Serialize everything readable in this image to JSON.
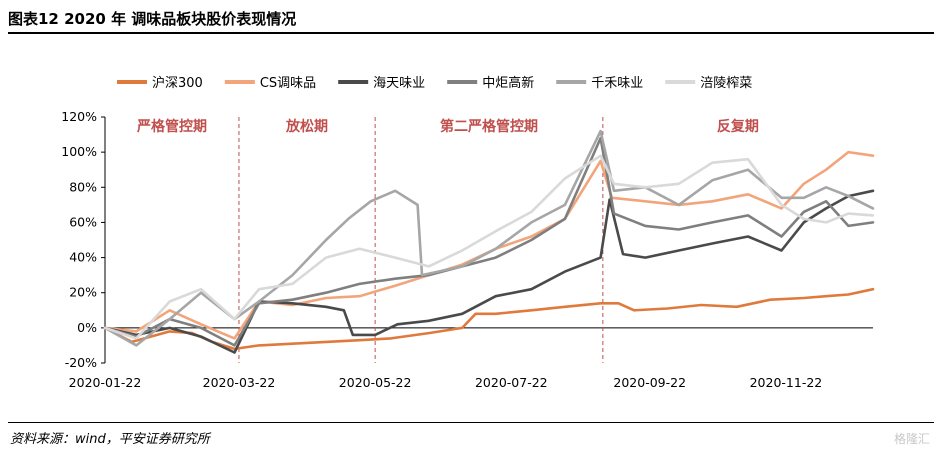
{
  "title": "图表12    2020 年 调味品板块股价表现情况",
  "source": "资料来源：wind，平安证券研究所",
  "watermark": "格隆汇",
  "chart_data": {
    "type": "line",
    "ylim": [
      -20,
      120
    ],
    "yticks": [
      -20,
      0,
      20,
      40,
      60,
      80,
      100,
      120
    ],
    "ytick_labels": [
      "-20%",
      "0%",
      "20%",
      "40%",
      "60%",
      "80%",
      "100%",
      "120%"
    ],
    "xlim": [
      "2020-01-22",
      "2020-12-31"
    ],
    "xticks": [
      "2020-01-22",
      "2020-03-22",
      "2020-05-22",
      "2020-07-22",
      "2020-09-22",
      "2020-11-22"
    ],
    "grid": false,
    "legend_position": "top",
    "phases": [
      {
        "label": "严格管控期",
        "start": "2020-01-22",
        "end": "2020-03-22"
      },
      {
        "label": "放松期",
        "start": "2020-03-22",
        "end": "2020-05-22"
      },
      {
        "label": "第二严格管控期",
        "start": "2020-05-22",
        "end": "2020-09-01"
      },
      {
        "label": "反复期",
        "start": "2020-09-01",
        "end": "2020-12-31"
      }
    ],
    "phase_dividers": [
      "2020-03-22",
      "2020-05-22",
      "2020-09-01"
    ],
    "series": [
      {
        "name": "沪深300",
        "color": "#e07a3c",
        "width": 2.6,
        "points": [
          [
            "2020-01-22",
            0
          ],
          [
            "2020-02-03",
            -8
          ],
          [
            "2020-02-20",
            -2
          ],
          [
            "2020-03-01",
            -3
          ],
          [
            "2020-03-10",
            -8
          ],
          [
            "2020-03-20",
            -12
          ],
          [
            "2020-03-31",
            -10
          ],
          [
            "2020-04-15",
            -9
          ],
          [
            "2020-04-30",
            -8
          ],
          [
            "2020-05-15",
            -7
          ],
          [
            "2020-05-29",
            -6
          ],
          [
            "2020-06-15",
            -3
          ],
          [
            "2020-06-30",
            0
          ],
          [
            "2020-07-06",
            8
          ],
          [
            "2020-07-15",
            8
          ],
          [
            "2020-07-31",
            10
          ],
          [
            "2020-08-15",
            12
          ],
          [
            "2020-08-31",
            14
          ],
          [
            "2020-09-08",
            14
          ],
          [
            "2020-09-15",
            10
          ],
          [
            "2020-09-30",
            11
          ],
          [
            "2020-10-15",
            13
          ],
          [
            "2020-10-31",
            12
          ],
          [
            "2020-11-15",
            16
          ],
          [
            "2020-11-30",
            17
          ],
          [
            "2020-12-10",
            18
          ],
          [
            "2020-12-20",
            19
          ],
          [
            "2020-12-31",
            22
          ]
        ]
      },
      {
        "name": "CS调味品",
        "color": "#f2a57a",
        "width": 2.6,
        "points": [
          [
            "2020-01-22",
            0
          ],
          [
            "2020-02-05",
            -2
          ],
          [
            "2020-02-20",
            10
          ],
          [
            "2020-03-05",
            2
          ],
          [
            "2020-03-20",
            -6
          ],
          [
            "2020-03-31",
            15
          ],
          [
            "2020-04-15",
            13
          ],
          [
            "2020-04-30",
            17
          ],
          [
            "2020-05-15",
            18
          ],
          [
            "2020-05-31",
            24
          ],
          [
            "2020-06-15",
            30
          ],
          [
            "2020-06-30",
            36
          ],
          [
            "2020-07-15",
            45
          ],
          [
            "2020-07-31",
            52
          ],
          [
            "2020-08-15",
            62
          ],
          [
            "2020-08-31",
            95
          ],
          [
            "2020-09-05",
            74
          ],
          [
            "2020-09-20",
            72
          ],
          [
            "2020-10-05",
            70
          ],
          [
            "2020-10-20",
            72
          ],
          [
            "2020-11-05",
            76
          ],
          [
            "2020-11-20",
            68
          ],
          [
            "2020-11-30",
            82
          ],
          [
            "2020-12-10",
            90
          ],
          [
            "2020-12-20",
            100
          ],
          [
            "2020-12-31",
            98
          ]
        ]
      },
      {
        "name": "海天味业",
        "color": "#4a4a4a",
        "width": 2.6,
        "points": [
          [
            "2020-01-22",
            0
          ],
          [
            "2020-02-05",
            -4
          ],
          [
            "2020-02-20",
            0
          ],
          [
            "2020-03-05",
            -5
          ],
          [
            "2020-03-20",
            -14
          ],
          [
            "2020-03-31",
            15
          ],
          [
            "2020-04-15",
            14
          ],
          [
            "2020-04-30",
            12
          ],
          [
            "2020-05-08",
            10
          ],
          [
            "2020-05-12",
            -4
          ],
          [
            "2020-05-22",
            -4
          ],
          [
            "2020-06-01",
            2
          ],
          [
            "2020-06-15",
            4
          ],
          [
            "2020-06-30",
            8
          ],
          [
            "2020-07-15",
            18
          ],
          [
            "2020-07-31",
            22
          ],
          [
            "2020-08-15",
            32
          ],
          [
            "2020-08-31",
            40
          ],
          [
            "2020-09-04",
            73
          ],
          [
            "2020-09-10",
            42
          ],
          [
            "2020-09-20",
            40
          ],
          [
            "2020-10-05",
            44
          ],
          [
            "2020-10-20",
            48
          ],
          [
            "2020-11-05",
            52
          ],
          [
            "2020-11-20",
            44
          ],
          [
            "2020-11-30",
            60
          ],
          [
            "2020-12-10",
            68
          ],
          [
            "2020-12-20",
            75
          ],
          [
            "2020-12-31",
            78
          ]
        ]
      },
      {
        "name": "中炬高新",
        "color": "#7f7f7f",
        "width": 2.6,
        "points": [
          [
            "2020-01-22",
            0
          ],
          [
            "2020-02-05",
            -5
          ],
          [
            "2020-02-20",
            5
          ],
          [
            "2020-03-05",
            0
          ],
          [
            "2020-03-20",
            -10
          ],
          [
            "2020-03-31",
            14
          ],
          [
            "2020-04-15",
            16
          ],
          [
            "2020-04-30",
            20
          ],
          [
            "2020-05-15",
            25
          ],
          [
            "2020-05-31",
            28
          ],
          [
            "2020-06-15",
            30
          ],
          [
            "2020-06-30",
            35
          ],
          [
            "2020-07-15",
            40
          ],
          [
            "2020-07-31",
            50
          ],
          [
            "2020-08-15",
            62
          ],
          [
            "2020-08-31",
            108
          ],
          [
            "2020-09-06",
            65
          ],
          [
            "2020-09-20",
            58
          ],
          [
            "2020-10-05",
            56
          ],
          [
            "2020-10-20",
            60
          ],
          [
            "2020-11-05",
            64
          ],
          [
            "2020-11-20",
            52
          ],
          [
            "2020-11-30",
            66
          ],
          [
            "2020-12-10",
            72
          ],
          [
            "2020-12-20",
            58
          ],
          [
            "2020-12-31",
            60
          ]
        ]
      },
      {
        "name": "千禾味业",
        "color": "#a6a6a6",
        "width": 2.6,
        "points": [
          [
            "2020-01-22",
            0
          ],
          [
            "2020-02-05",
            -10
          ],
          [
            "2020-02-20",
            5
          ],
          [
            "2020-03-05",
            20
          ],
          [
            "2020-03-20",
            5
          ],
          [
            "2020-03-31",
            15
          ],
          [
            "2020-04-15",
            30
          ],
          [
            "2020-04-30",
            50
          ],
          [
            "2020-05-10",
            62
          ],
          [
            "2020-05-20",
            72
          ],
          [
            "2020-05-31",
            78
          ],
          [
            "2020-06-10",
            70
          ],
          [
            "2020-06-12",
            30
          ],
          [
            "2020-06-30",
            35
          ],
          [
            "2020-07-15",
            45
          ],
          [
            "2020-07-31",
            60
          ],
          [
            "2020-08-15",
            70
          ],
          [
            "2020-08-31",
            112
          ],
          [
            "2020-09-06",
            78
          ],
          [
            "2020-09-20",
            80
          ],
          [
            "2020-10-05",
            70
          ],
          [
            "2020-10-20",
            84
          ],
          [
            "2020-11-05",
            90
          ],
          [
            "2020-11-20",
            74
          ],
          [
            "2020-11-30",
            74
          ],
          [
            "2020-12-10",
            80
          ],
          [
            "2020-12-20",
            75
          ],
          [
            "2020-12-31",
            68
          ]
        ]
      },
      {
        "name": "涪陵榨菜",
        "color": "#d9d9d9",
        "width": 2.6,
        "points": [
          [
            "2020-01-22",
            0
          ],
          [
            "2020-02-05",
            -6
          ],
          [
            "2020-02-20",
            15
          ],
          [
            "2020-03-05",
            22
          ],
          [
            "2020-03-20",
            5
          ],
          [
            "2020-03-31",
            22
          ],
          [
            "2020-04-15",
            25
          ],
          [
            "2020-04-30",
            40
          ],
          [
            "2020-05-15",
            45
          ],
          [
            "2020-05-31",
            40
          ],
          [
            "2020-06-15",
            35
          ],
          [
            "2020-06-30",
            44
          ],
          [
            "2020-07-15",
            55
          ],
          [
            "2020-07-31",
            66
          ],
          [
            "2020-08-15",
            85
          ],
          [
            "2020-08-31",
            98
          ],
          [
            "2020-09-06",
            82
          ],
          [
            "2020-09-20",
            80
          ],
          [
            "2020-10-05",
            82
          ],
          [
            "2020-10-20",
            94
          ],
          [
            "2020-11-05",
            96
          ],
          [
            "2020-11-20",
            70
          ],
          [
            "2020-11-30",
            62
          ],
          [
            "2020-12-10",
            60
          ],
          [
            "2020-12-20",
            65
          ],
          [
            "2020-12-31",
            64
          ]
        ]
      }
    ]
  }
}
